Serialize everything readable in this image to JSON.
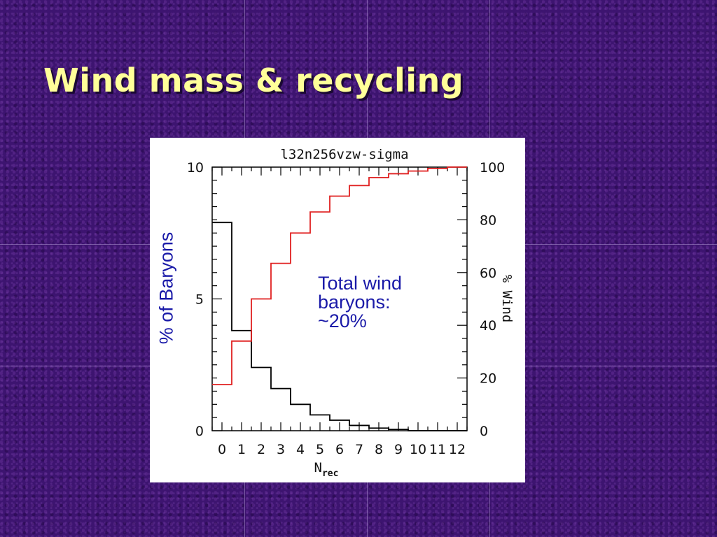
{
  "slide": {
    "title": "Wind mass & recycling",
    "annotation_lines": [
      "Total wind",
      "baryons:",
      "~20%"
    ],
    "left_axis_label": "% of Baryons"
  },
  "colors": {
    "background": "#3d1470",
    "title": "#ffff99",
    "annotation": "#1a1aa8",
    "series_black": "#000000",
    "series_red": "#e02020"
  },
  "chart_data": {
    "type": "line",
    "step": true,
    "title": "l32n256vzw-sigma",
    "xlabel_main": "N",
    "xlabel_sub": "rec",
    "ylabel_left": "% of Baryons",
    "ylabel_right": "% Wind",
    "x_ticks": [
      "0",
      "1",
      "2",
      "3",
      "4",
      "5",
      "6",
      "7",
      "8",
      "9",
      "10",
      "11",
      "12"
    ],
    "xlim": [
      -0.5,
      12.5
    ],
    "ylim_left": [
      0,
      10
    ],
    "ylim_right": [
      0,
      100
    ],
    "y_ticks_left": [
      "0",
      "5",
      "10"
    ],
    "y_ticks_right": [
      "0",
      "20",
      "40",
      "60",
      "80",
      "100"
    ],
    "grid": false,
    "series": [
      {
        "axis": "left",
        "color": "#000000",
        "x": [
          0,
          1,
          2,
          3,
          4,
          5,
          6,
          7,
          8,
          9,
          10,
          11,
          12
        ],
        "values": [
          7.9,
          3.8,
          2.4,
          1.6,
          1.0,
          0.6,
          0.4,
          0.2,
          0.1,
          0.05,
          0.0,
          0.0,
          0.0
        ]
      },
      {
        "axis": "right",
        "color": "#e02020",
        "x": [
          0,
          1,
          2,
          3,
          4,
          5,
          6,
          7,
          8,
          9,
          10,
          11,
          12
        ],
        "values": [
          17.5,
          34,
          50,
          63.5,
          75,
          83,
          89,
          93,
          96,
          97.5,
          98.5,
          99.5,
          100
        ]
      }
    ]
  }
}
